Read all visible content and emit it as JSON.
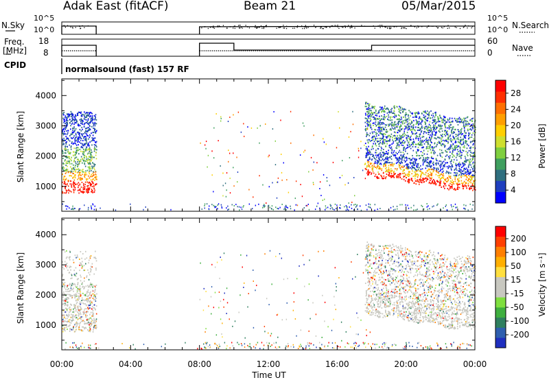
{
  "header": {
    "station": "Adak East (fitACF)",
    "beam": "Beam 21",
    "date": "05/Mar/2015"
  },
  "top_panels": {
    "nsky_label": "N.Sky",
    "nsky_ticks": [
      "10^5",
      "10^0"
    ],
    "nsearch_label": "N.Search",
    "nsearch_ticks": [
      "10^5",
      "10^0"
    ],
    "freq_label": "Freq.",
    "freq_unit": "[MHz]",
    "freq_ticks": [
      "18",
      "8"
    ],
    "nave_label": "Nave",
    "nave_ticks": [
      "60",
      "0"
    ],
    "cpid_label": "CPID",
    "cpid_text": "normalsound (fast) 157 RF"
  },
  "chart_data": [
    {
      "type": "heatmap",
      "name": "power-panel",
      "ylabel": "Slant Range [km]",
      "yticks": [
        "4000",
        "3000",
        "2000",
        "1000"
      ],
      "ytick_values": [
        4000,
        3000,
        2000,
        1000
      ],
      "ylim": [
        180,
        4550
      ],
      "colorbar_label": "Power [dB]",
      "colorbar_ticks": [
        "28",
        "24",
        "20",
        "16",
        "12",
        "8",
        "4"
      ],
      "colorbar_colors": [
        "#0000ff",
        "#1f3fbf",
        "#2f6f7f",
        "#3f9f5f",
        "#7fcf3f",
        "#cfdf2f",
        "#ffcf00",
        "#ff9f00",
        "#ff6f00",
        "#ff2f00",
        "#ff0000"
      ],
      "data_windows": [
        [
          0,
          2
        ],
        [
          8,
          24
        ]
      ]
    },
    {
      "type": "heatmap",
      "name": "velocity-panel",
      "ylabel": "Slant Range [km]",
      "yticks": [
        "4000",
        "3000",
        "2000",
        "1000"
      ],
      "ytick_values": [
        4000,
        3000,
        2000,
        1000
      ],
      "ylim": [
        180,
        4550
      ],
      "colorbar_label": "Velocity [m s⁻¹]",
      "colorbar_ticks": [
        "200",
        "100",
        "50",
        "15",
        "-15",
        "-50",
        "-100",
        "-200"
      ],
      "colorbar_colors": [
        "#1f2fbf",
        "#2f5faf",
        "#2f7f5f",
        "#3faf3f",
        "#7fdf3f",
        "#c8c8c0",
        "#c8c8c0",
        "#ffdf3f",
        "#ffaf00",
        "#ff7f00",
        "#ff3f00",
        "#ff0000"
      ],
      "data_windows": [
        [
          0,
          2
        ],
        [
          8,
          24
        ]
      ]
    }
  ],
  "time_axis": {
    "label": "Time UT",
    "ticks": [
      "00:00",
      "04:00",
      "08:00",
      "12:00",
      "16:00",
      "20:00",
      "00:00"
    ],
    "tick_hours": [
      0,
      4,
      8,
      12,
      16,
      20,
      24
    ]
  }
}
